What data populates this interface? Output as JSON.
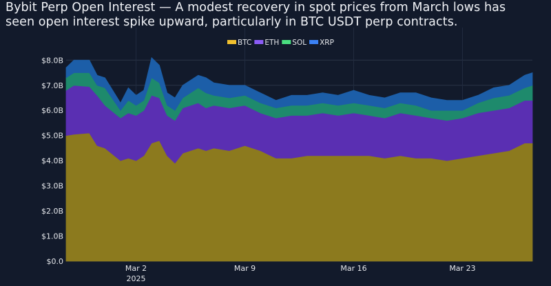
{
  "title_line1": "Bybit Perp Open Interest — A modest recovery in spot prices from March lows has",
  "title_line2": "seen open interest spike upward, particularly in BTC USDT perp contracts.",
  "chart_data": {
    "type": "area",
    "stacked": true,
    "title": "Bybit Perp Open Interest — A modest recovery in spot prices from March lows has seen open interest spike upward, particularly in BTC USDT perp contracts.",
    "xlabel": "",
    "ylabel": "",
    "xlim": [
      "2025-02-25 12:00",
      "2025-03-27 12:00"
    ],
    "ylim": [
      0,
      8.2
    ],
    "unit": "USD billions",
    "y_ticks": [
      0,
      1,
      2,
      3,
      4,
      5,
      6,
      7,
      8
    ],
    "y_tick_labels": [
      "$0.0",
      "$1.0B",
      "$2.0B",
      "$3.0B",
      "$4.0B",
      "$5.0B",
      "$6.0B",
      "$7.0B",
      "$8.0B"
    ],
    "x_ticks": [
      "2025-03-02",
      "2025-03-09",
      "2025-03-16",
      "2025-03-23"
    ],
    "x_tick_labels": [
      "Mar 2",
      "Mar 9",
      "Mar 16",
      "Mar 23"
    ],
    "x_year_label": "2025",
    "grid": true,
    "legend_position": "top-center",
    "x": [
      "2025-02-25 12:00",
      "2025-02-26 00:00",
      "2025-02-27 00:00",
      "2025-02-27 12:00",
      "2025-02-28 00:00",
      "2025-03-01 00:00",
      "2025-03-01 12:00",
      "2025-03-02 00:00",
      "2025-03-02 12:00",
      "2025-03-03 00:00",
      "2025-03-03 12:00",
      "2025-03-04 00:00",
      "2025-03-04 12:00",
      "2025-03-05 00:00",
      "2025-03-06 00:00",
      "2025-03-06 12:00",
      "2025-03-07 00:00",
      "2025-03-08 00:00",
      "2025-03-09 00:00",
      "2025-03-10 00:00",
      "2025-03-11 00:00",
      "2025-03-12 00:00",
      "2025-03-13 00:00",
      "2025-03-14 00:00",
      "2025-03-15 00:00",
      "2025-03-16 00:00",
      "2025-03-17 00:00",
      "2025-03-18 00:00",
      "2025-03-19 00:00",
      "2025-03-20 00:00",
      "2025-03-21 00:00",
      "2025-03-22 00:00",
      "2025-03-23 00:00",
      "2025-03-24 00:00",
      "2025-03-25 00:00",
      "2025-03-26 00:00",
      "2025-03-27 00:00",
      "2025-03-27 12:00"
    ],
    "series": [
      {
        "name": "BTC",
        "color": "#f2c12e",
        "fill": "#8c7a1e",
        "values": [
          5.0,
          5.05,
          5.1,
          4.6,
          4.5,
          4.0,
          4.1,
          4.0,
          4.2,
          4.7,
          4.8,
          4.2,
          3.9,
          4.3,
          4.5,
          4.4,
          4.5,
          4.4,
          4.6,
          4.4,
          4.1,
          4.1,
          4.2,
          4.2,
          4.2,
          4.2,
          4.2,
          4.1,
          4.2,
          4.1,
          4.1,
          4.0,
          4.1,
          4.2,
          4.3,
          4.4,
          4.7,
          4.7
        ]
      },
      {
        "name": "ETH",
        "color": "#8b5cf6",
        "fill": "#5a2fb2",
        "values": [
          1.8,
          1.95,
          1.85,
          2.0,
          1.7,
          1.7,
          1.8,
          1.8,
          1.8,
          1.9,
          1.7,
          1.6,
          1.7,
          1.8,
          1.8,
          1.7,
          1.7,
          1.7,
          1.6,
          1.5,
          1.6,
          1.7,
          1.6,
          1.7,
          1.6,
          1.7,
          1.6,
          1.6,
          1.7,
          1.7,
          1.6,
          1.6,
          1.6,
          1.7,
          1.7,
          1.7,
          1.7,
          1.7
        ]
      },
      {
        "name": "SOL",
        "color": "#4ade80",
        "fill": "#1e8a6c",
        "values": [
          0.5,
          0.5,
          0.55,
          0.4,
          0.7,
          0.3,
          0.5,
          0.4,
          0.4,
          0.7,
          0.6,
          0.4,
          0.4,
          0.4,
          0.6,
          0.6,
          0.4,
          0.4,
          0.4,
          0.4,
          0.4,
          0.4,
          0.4,
          0.4,
          0.4,
          0.4,
          0.4,
          0.4,
          0.4,
          0.4,
          0.3,
          0.4,
          0.3,
          0.4,
          0.5,
          0.5,
          0.5,
          0.6
        ]
      },
      {
        "name": "XRP",
        "color": "#3b82f6",
        "fill": "#1c5ea8",
        "values": [
          0.4,
          0.5,
          0.5,
          0.4,
          0.4,
          0.3,
          0.5,
          0.4,
          0.4,
          0.8,
          0.7,
          0.5,
          0.5,
          0.5,
          0.5,
          0.6,
          0.5,
          0.5,
          0.4,
          0.4,
          0.3,
          0.4,
          0.4,
          0.4,
          0.4,
          0.5,
          0.4,
          0.4,
          0.4,
          0.5,
          0.5,
          0.4,
          0.4,
          0.3,
          0.4,
          0.4,
          0.5,
          0.5
        ]
      }
    ]
  }
}
